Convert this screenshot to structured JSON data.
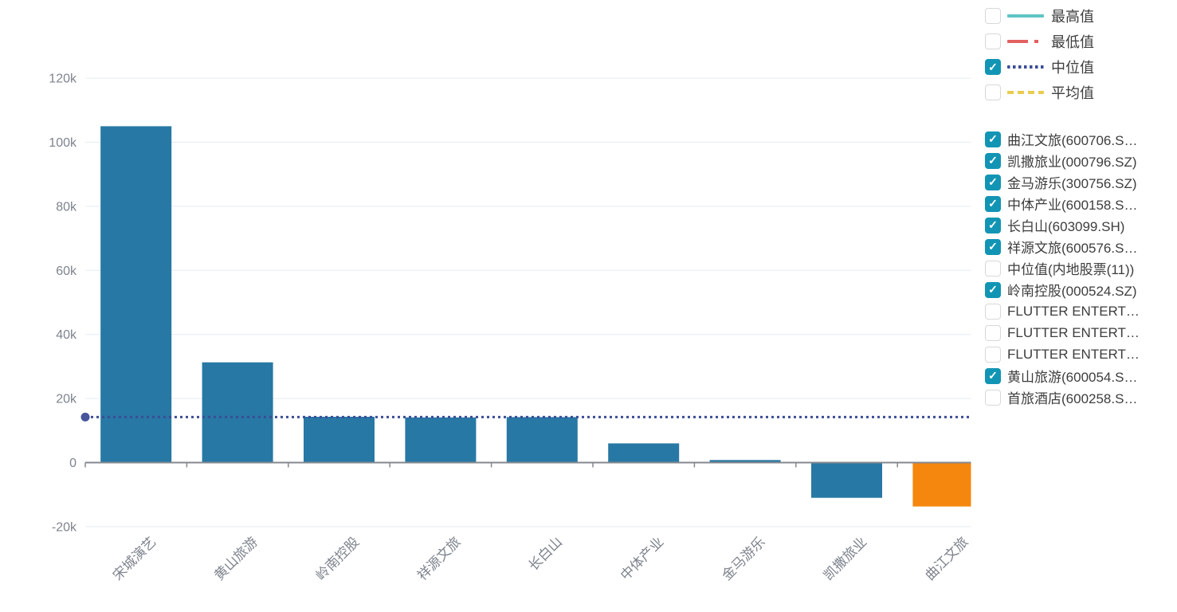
{
  "chart_data": {
    "type": "bar",
    "title": "",
    "xlabel": "",
    "ylabel": "",
    "categories": [
      "宋城演艺",
      "黄山旅游",
      "岭南控股",
      "祥源文旅",
      "长白山",
      "中体产业",
      "金马游乐",
      "凯撒旅业",
      "曲江文旅"
    ],
    "values": [
      105000,
      31300,
      14300,
      14100,
      14200,
      6000,
      800,
      -11000,
      -13700
    ],
    "bar_colors": [
      "#2778A4",
      "#2778A4",
      "#2778A4",
      "#2778A4",
      "#2778A4",
      "#2778A4",
      "#2778A4",
      "#2778A4",
      "#F5870F"
    ],
    "y_ticks": [
      "120k",
      "100k",
      "80k",
      "60k",
      "40k",
      "20k",
      "0",
      "-20k"
    ],
    "y_tick_values": [
      120000,
      100000,
      80000,
      60000,
      40000,
      20000,
      0,
      -20000
    ],
    "ylim": [
      -25000,
      124500
    ],
    "grid": true,
    "legend_position": "right",
    "median_line": {
      "label": "中位值",
      "value": 14200,
      "color": "#3B4D97"
    }
  },
  "legend_stats": {
    "items": [
      {
        "label": "最高值",
        "checked": false,
        "color": "#5FC4C4",
        "style": "solid"
      },
      {
        "label": "最低值",
        "checked": false,
        "color": "#E36060",
        "style": "dashdot"
      },
      {
        "label": "中位值",
        "checked": true,
        "color": "#3B4D97",
        "style": "dotted"
      },
      {
        "label": "平均值",
        "checked": false,
        "color": "#EBCB4E",
        "style": "dashed"
      }
    ]
  },
  "legend_series": {
    "items": [
      {
        "label": "曲江文旅(600706.S…",
        "checked": true
      },
      {
        "label": "凯撒旅业(000796.SZ)",
        "checked": true
      },
      {
        "label": "金马游乐(300756.SZ)",
        "checked": true
      },
      {
        "label": "中体产业(600158.S…",
        "checked": true
      },
      {
        "label": "长白山(603099.SH)",
        "checked": true
      },
      {
        "label": "祥源文旅(600576.S…",
        "checked": true
      },
      {
        "label": "中位值(内地股票(11))",
        "checked": false
      },
      {
        "label": "岭南控股(000524.SZ)",
        "checked": true
      },
      {
        "label": "FLUTTER ENTERT…",
        "checked": false
      },
      {
        "label": "FLUTTER ENTERT…",
        "checked": false
      },
      {
        "label": "FLUTTER ENTERT…",
        "checked": false
      },
      {
        "label": "黄山旅游(600054.S…",
        "checked": true
      },
      {
        "label": "首旅酒店(600258.S…",
        "checked": false
      }
    ]
  },
  "checkbox": {
    "check_glyph": "✓",
    "checked_color": "#1295B4"
  }
}
